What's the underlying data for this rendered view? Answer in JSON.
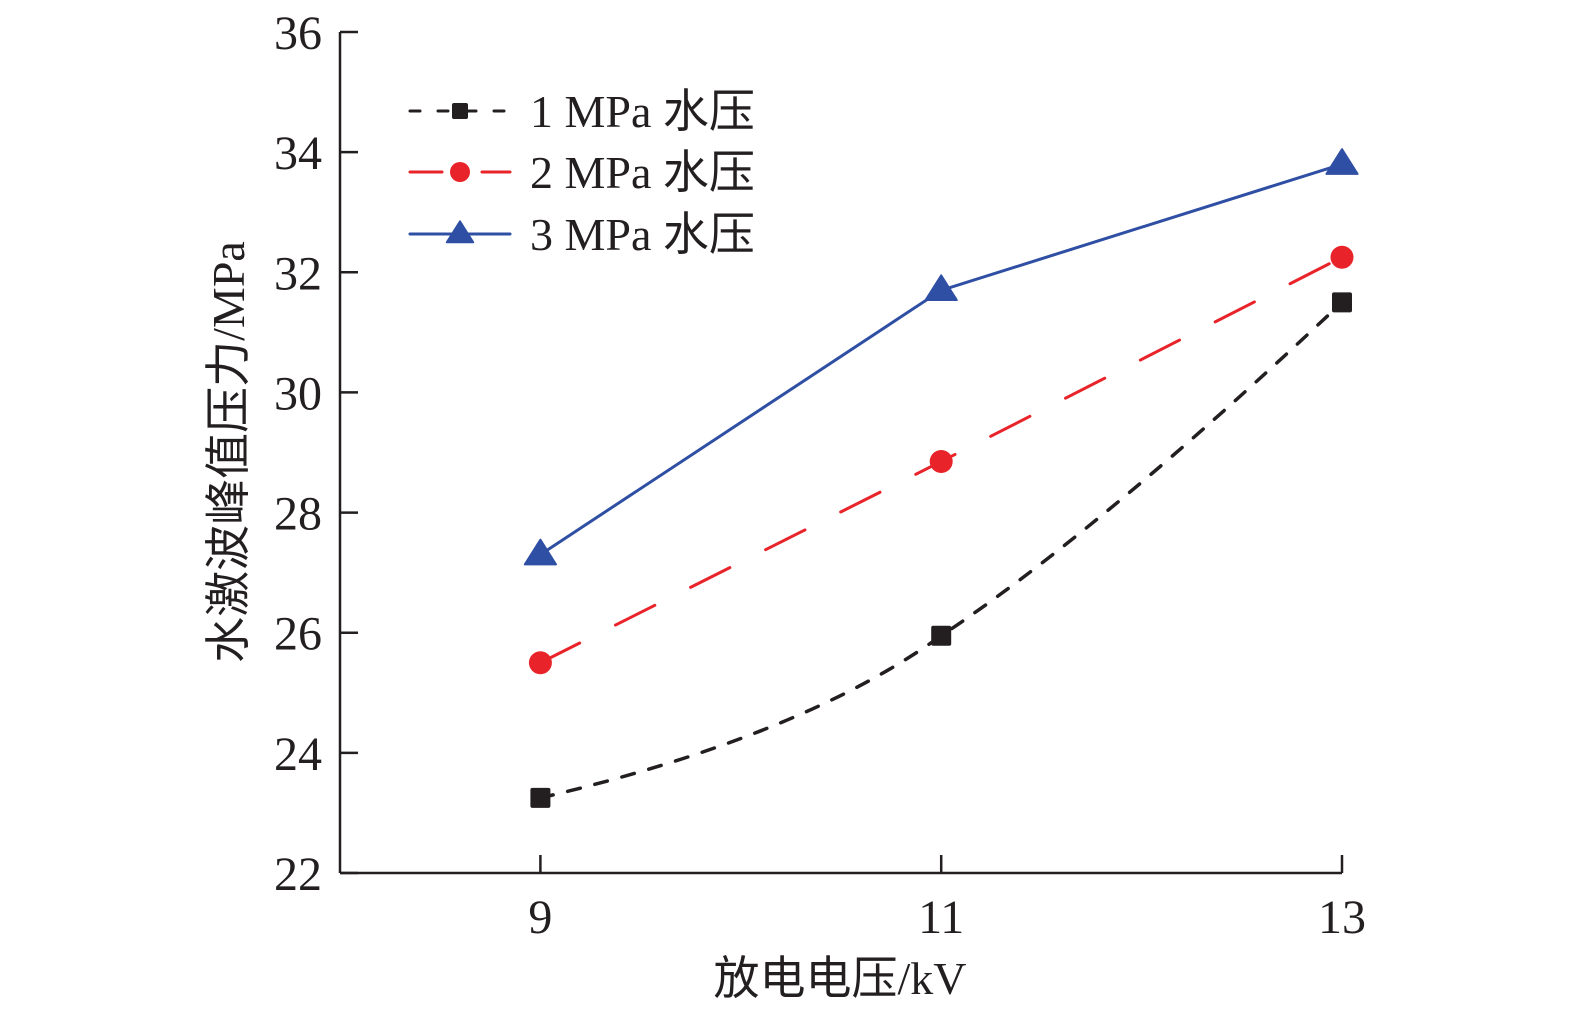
{
  "chart_data": {
    "type": "line",
    "title": "",
    "xlabel": "放电电压/kV",
    "ylabel": "水激波峰值压力/MPa",
    "x": [
      9,
      11,
      13
    ],
    "x_tick_labels": [
      "9",
      "11",
      "13"
    ],
    "xlim": [
      8,
      13
    ],
    "ylim": [
      22,
      36
    ],
    "y_ticks": [
      22,
      24,
      26,
      28,
      30,
      32,
      34,
      36
    ],
    "y_tick_labels": [
      "22",
      "24",
      "26",
      "28",
      "30",
      "32",
      "34",
      "36"
    ],
    "grid": false,
    "legend_position": "top-left",
    "series": [
      {
        "name": "1 MPa 水压",
        "values": [
          23.25,
          25.95,
          31.5
        ],
        "color": "#231f20",
        "marker": "square",
        "line_style": "short-dash"
      },
      {
        "name": "2 MPa 水压",
        "values": [
          25.5,
          28.85,
          32.25
        ],
        "color": "#e8232a",
        "marker": "circle",
        "line_style": "long-dash"
      },
      {
        "name": "3 MPa 水压",
        "values": [
          27.3,
          31.7,
          33.8
        ],
        "color": "#2e4fa3",
        "marker": "triangle",
        "line_style": "solid"
      }
    ]
  }
}
